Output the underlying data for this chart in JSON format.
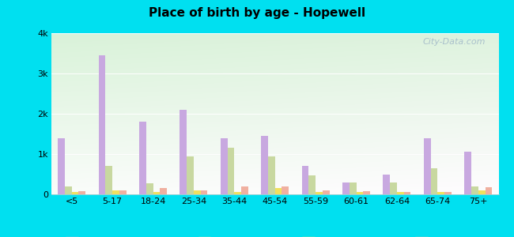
{
  "title": "Place of birth by age - Hopewell",
  "categories": [
    "<5",
    "5-17",
    "18-24",
    "25-34",
    "35-44",
    "45-54",
    "55-59",
    "60-61",
    "62-64",
    "65-74",
    "75+"
  ],
  "series": {
    "Born in state of residence": [
      1400,
      3450,
      1800,
      2100,
      1400,
      1450,
      700,
      300,
      500,
      1400,
      1050
    ],
    "Born in other state": [
      200,
      700,
      280,
      950,
      1150,
      950,
      480,
      300,
      300,
      650,
      200
    ],
    "Native, outside of US": [
      50,
      100,
      50,
      100,
      50,
      150,
      50,
      50,
      50,
      50,
      100
    ],
    "Foreign-born": [
      80,
      100,
      150,
      100,
      200,
      200,
      100,
      70,
      50,
      50,
      180
    ]
  },
  "colors": {
    "Born in state of residence": "#c8a8e0",
    "Born in other state": "#c8d8a0",
    "Native, outside of US": "#f0e060",
    "Foreign-born": "#f0b0a0"
  },
  "ylim": [
    0,
    4000
  ],
  "yticks": [
    0,
    1000,
    2000,
    3000,
    4000
  ],
  "ytick_labels": [
    "0",
    "1k",
    "2k",
    "3k",
    "4k"
  ],
  "bg_color_topleft": "#c8e8c8",
  "bg_color_topright": "#e0f0e0",
  "bg_color_bottom": "#f8fff8",
  "outer_background": "#00e0f0",
  "watermark": "City-Data.com",
  "bar_width": 0.17,
  "offsets": [
    -1.5,
    -0.5,
    0.5,
    1.5
  ]
}
